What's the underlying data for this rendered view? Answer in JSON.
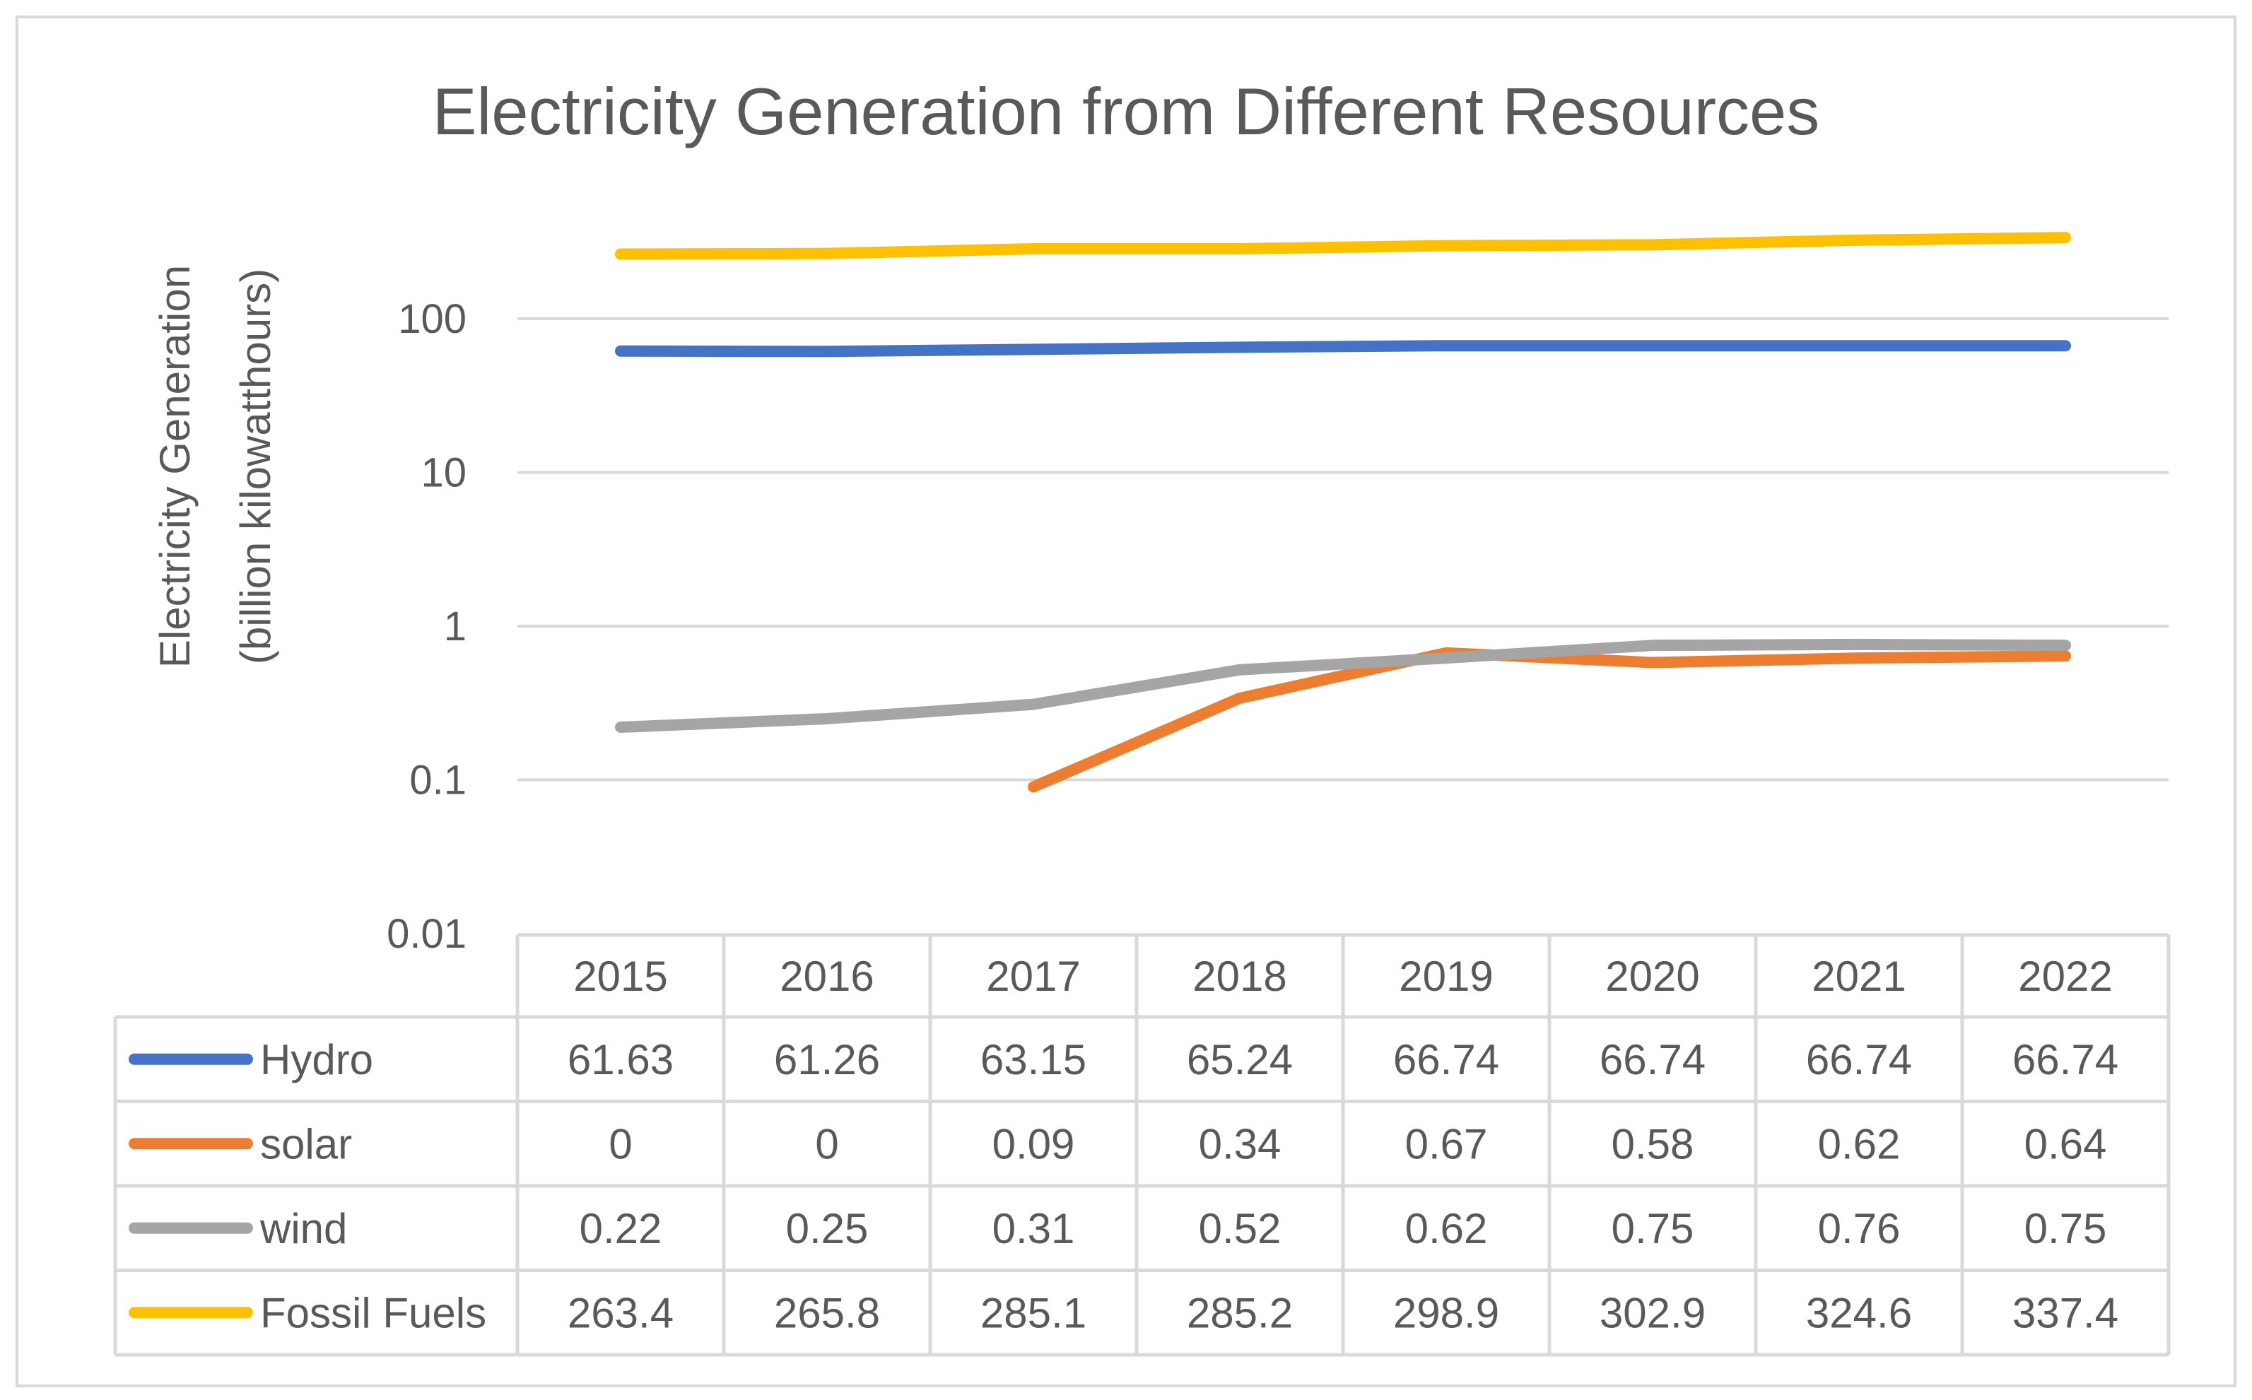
{
  "chart_data": {
    "type": "line",
    "title": "Electricity Generation from Different Resources",
    "xlabel": "",
    "ylabel": [
      "Electricity Generation",
      "(billion kilowatthours)"
    ],
    "yscale": "log",
    "ylim": [
      0.01,
      1000
    ],
    "yticks": [
      {
        "value": 100,
        "label": "100"
      },
      {
        "value": 10,
        "label": "10"
      },
      {
        "value": 1,
        "label": "1"
      },
      {
        "value": 0.1,
        "label": "0.1"
      },
      {
        "value": 0.01,
        "label": "0.01"
      }
    ],
    "grid": true,
    "legend": "data-table-below",
    "categories": [
      "2015",
      "2016",
      "2017",
      "2018",
      "2019",
      "2020",
      "2021",
      "2022"
    ],
    "series": [
      {
        "name": "Hydro",
        "color": "#4472C4",
        "values": [
          61.63,
          61.26,
          63.15,
          65.24,
          66.74,
          66.74,
          66.74,
          66.74
        ],
        "labels": [
          "61.63",
          "61.26",
          "63.15",
          "65.24",
          "66.74",
          "66.74",
          "66.74",
          "66.74"
        ]
      },
      {
        "name": "solar",
        "color": "#ED7D31",
        "values": [
          0,
          0,
          0.09,
          0.34,
          0.67,
          0.58,
          0.62,
          0.64
        ],
        "labels": [
          "0",
          "0",
          "0.09",
          "0.34",
          "0.67",
          "0.58",
          "0.62",
          "0.64"
        ]
      },
      {
        "name": "wind",
        "color": "#A5A5A5",
        "values": [
          0.22,
          0.25,
          0.31,
          0.52,
          0.62,
          0.75,
          0.76,
          0.75
        ],
        "labels": [
          "0.22",
          "0.25",
          "0.31",
          "0.52",
          "0.62",
          "0.75",
          "0.76",
          "0.75"
        ]
      },
      {
        "name": "Fossil Fuels",
        "color": "#FFC000",
        "values": [
          263.4,
          265.8,
          285.1,
          285.2,
          298.9,
          302.9,
          324.6,
          337.4
        ],
        "labels": [
          "263.4",
          "265.8",
          "285.1",
          "285.2",
          "298.9",
          "302.9",
          "324.6",
          "337.4"
        ]
      }
    ]
  }
}
